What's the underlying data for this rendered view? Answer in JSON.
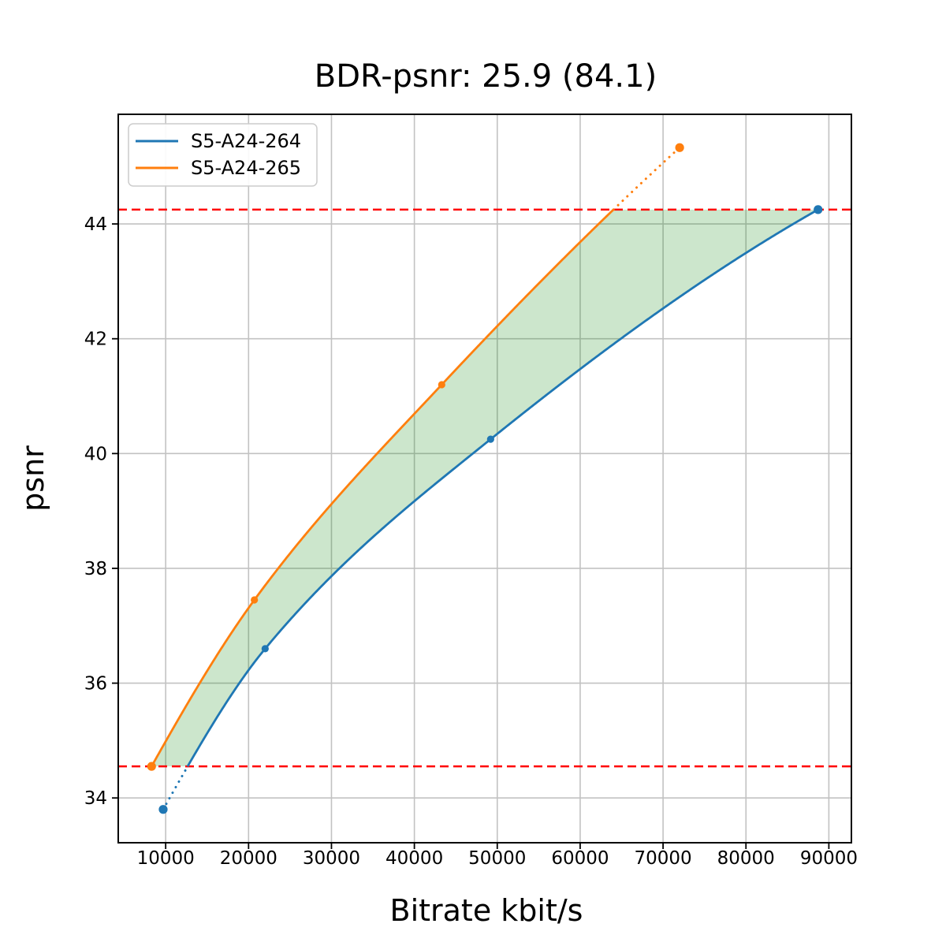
{
  "chart_data": {
    "type": "line",
    "title": "BDR-psnr: 25.9 (84.1)",
    "xlabel": "Bitrate kbit/s",
    "ylabel": "psnr",
    "xlim": [
      4280,
      92720
    ],
    "ylim": [
      33.22,
      45.91
    ],
    "xticks": [
      10000,
      20000,
      30000,
      40000,
      50000,
      60000,
      70000,
      80000,
      90000
    ],
    "yticks": [
      34,
      36,
      38,
      40,
      42,
      44
    ],
    "grid": true,
    "legend_position": "upper left",
    "series": [
      {
        "name": "S5-A24-264",
        "color": "#1f77b4",
        "x": [
          9700,
          22000,
          49200,
          88700
        ],
        "y": [
          33.8,
          36.6,
          40.25,
          44.25
        ]
      },
      {
        "name": "S5-A24-265",
        "color": "#ff7f0e",
        "x": [
          8300,
          20700,
          43300,
          72000
        ],
        "y": [
          34.55,
          37.45,
          41.2,
          45.33
        ]
      }
    ],
    "hlines": {
      "color": "#ff0000",
      "style": "dashed",
      "values": [
        34.55,
        44.25
      ]
    },
    "overlap_fill": {
      "color": "#008000",
      "opacity": 0.2,
      "psnr_range": [
        34.55,
        44.25
      ]
    },
    "bd_metrics": {
      "bdr_psnr": "25.9",
      "secondary": "84.1"
    }
  }
}
